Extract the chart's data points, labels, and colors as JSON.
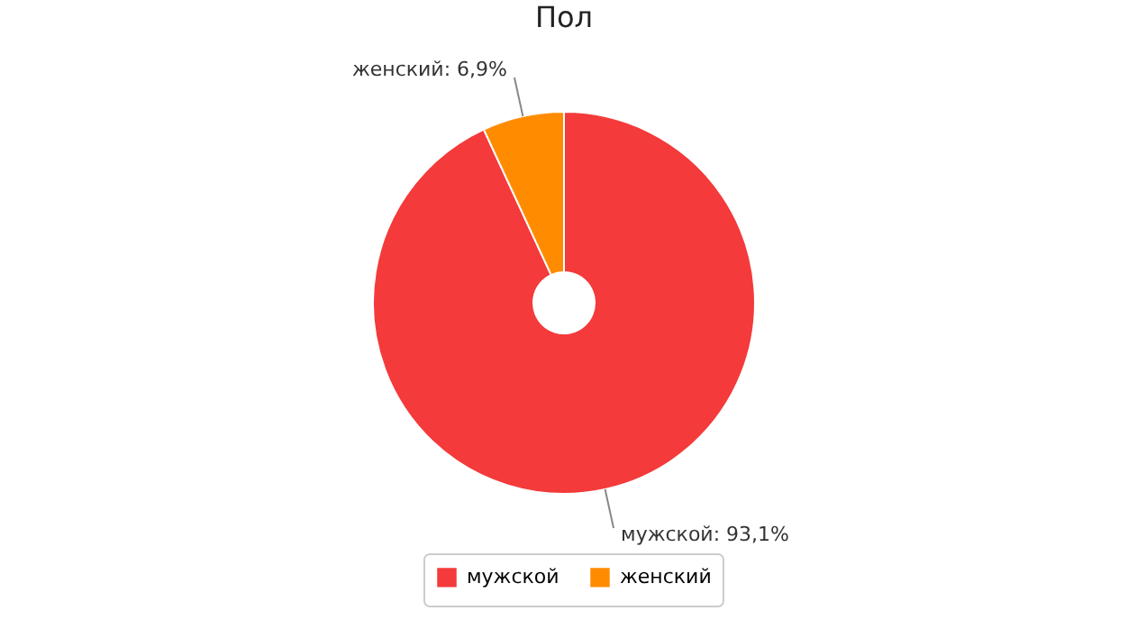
{
  "chart_data": {
    "type": "donut",
    "title": "Пол",
    "categories": [
      "мужской",
      "женский"
    ],
    "values": [
      93.1,
      6.9
    ],
    "value_labels": [
      "мужской: 93,1%",
      "женский: 6,9%"
    ],
    "colors": [
      "#f43a3a",
      "#ff8c00"
    ],
    "legend": "bottom"
  }
}
